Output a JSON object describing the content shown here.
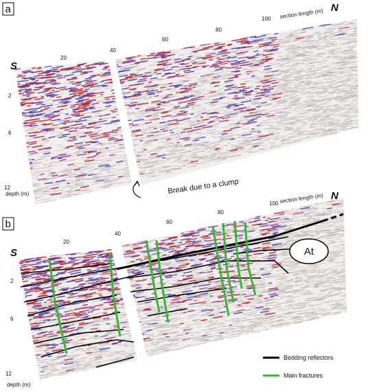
{
  "panels": [
    {
      "label": "a",
      "south": "S",
      "north": "N",
      "x_axis_title": "section length (m)",
      "x_ticks": [
        20,
        40,
        60,
        80,
        100
      ],
      "depth_title": "depth (m)",
      "depth_ticks": [
        2,
        6,
        12
      ],
      "annotation": "Break due to a clump"
    },
    {
      "label": "b",
      "south": "S",
      "north": "N",
      "x_axis_title": "section length (m)",
      "x_ticks": [
        20,
        40,
        60,
        80,
        100
      ],
      "depth_title": "depth (m)",
      "depth_ticks": [
        2,
        6,
        12
      ],
      "annotation": "At",
      "legend": [
        {
          "label": "Bedding reflectors",
          "color": "#000000"
        },
        {
          "label": "Main fractures",
          "color": "#33b833"
        }
      ]
    }
  ]
}
